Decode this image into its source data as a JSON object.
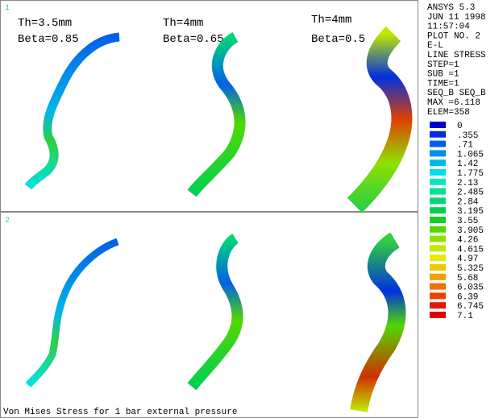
{
  "panels": [
    {
      "number": "1",
      "annotations": [
        "Th=3.5mm",
        "Beta=0.85",
        "Th=4mm",
        "Beta=0.65",
        "Th=4mm",
        "Beta=0.5"
      ]
    },
    {
      "number": "2"
    }
  ],
  "info": [
    "ANSYS 5.3",
    "JUN 11 1998",
    "11:57:04",
    "PLOT NO.   2",
    "E-L",
    "LINE STRESS",
    "STEP=1",
    "SUB =1",
    "TIME=1",
    "SEQ_B    SEQ_B",
    "MAX =6.118",
    "ELEM=358"
  ],
  "legend": [
    {
      "label": "0",
      "color": "#0000d0"
    },
    {
      "label": ".355",
      "color": "#0030e0"
    },
    {
      "label": ".71",
      "color": "#0060e8"
    },
    {
      "label": "1.065",
      "color": "#0090e8"
    },
    {
      "label": "1.42",
      "color": "#00b8e8"
    },
    {
      "label": "1.775",
      "color": "#00e0e8"
    },
    {
      "label": "2.13",
      "color": "#00e8c0"
    },
    {
      "label": "2.485",
      "color": "#00e098"
    },
    {
      "label": "2.84",
      "color": "#00d878"
    },
    {
      "label": "3.195",
      "color": "#00d050"
    },
    {
      "label": "3.55",
      "color": "#10d020"
    },
    {
      "label": "3.905",
      "color": "#50d800"
    },
    {
      "label": "4.26",
      "color": "#90e000"
    },
    {
      "label": "4.615",
      "color": "#c0e800"
    },
    {
      "label": "4.97",
      "color": "#e8e800"
    },
    {
      "label": "5.325",
      "color": "#f0c800"
    },
    {
      "label": "5.68",
      "color": "#f0a000"
    },
    {
      "label": "6.035",
      "color": "#f07000"
    },
    {
      "label": "6.39",
      "color": "#f04000"
    },
    {
      "label": "6.745",
      "color": "#e81800"
    },
    {
      "label": "7.1",
      "color": "#e00000"
    }
  ],
  "caption": "Von Mises Stress for 1 bar external pressure"
}
